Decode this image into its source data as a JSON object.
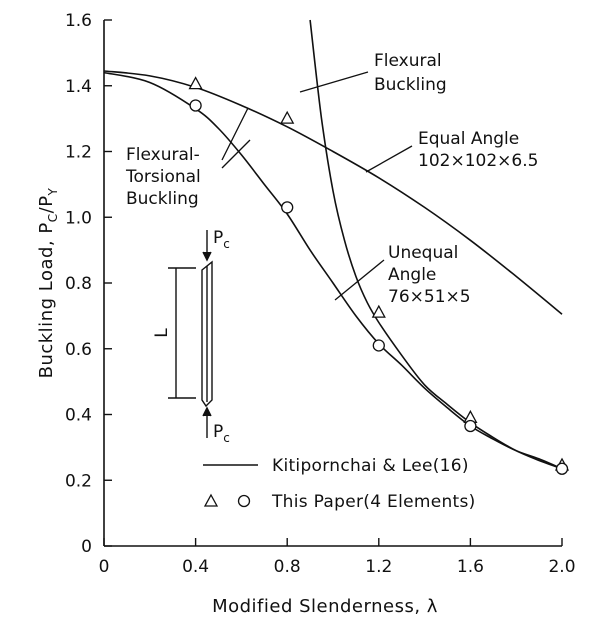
{
  "chart_data": {
    "type": "line",
    "xlabel": "Modified Slenderness, λ",
    "ylabel_parts": [
      "Buckling Load, P",
      "C",
      "/P",
      "Y"
    ],
    "xlim": [
      0,
      2.0
    ],
    "ylim": [
      0,
      1.6
    ],
    "xticks": [
      0,
      0.4,
      0.8,
      1.2,
      1.6,
      2.0
    ],
    "xtick_labels": [
      "0",
      "0.4",
      "0.8",
      "1.2",
      "1.6",
      "2.0"
    ],
    "yticks": [
      0,
      0.2,
      0.4,
      0.6,
      0.8,
      1.0,
      1.2,
      1.4,
      1.6
    ],
    "ytick_labels": [
      "0",
      "0.2",
      "0.4",
      "0.6",
      "0.8",
      "1.0",
      "1.2",
      "1.4",
      "1.6"
    ],
    "grid": false,
    "legend_position": "bottom-right",
    "series": [
      {
        "name": "Equal Angle 102×102×6.5",
        "style": "line",
        "x": [
          0,
          0.2,
          0.4,
          0.6,
          0.8,
          1.0,
          1.2,
          1.4,
          1.6,
          1.8,
          2.0
        ],
        "y": [
          1.445,
          1.43,
          1.395,
          1.34,
          1.275,
          1.2,
          1.12,
          1.03,
          0.93,
          0.82,
          0.705
        ]
      },
      {
        "name": "Unequal Angle 76×51×5",
        "style": "line",
        "x": [
          0,
          0.2,
          0.4,
          0.5,
          0.6,
          0.7,
          0.8,
          0.9,
          1.0,
          1.1,
          1.2,
          1.3,
          1.4,
          1.5,
          1.6,
          1.7,
          1.8,
          1.9,
          2.0
        ],
        "y": [
          1.44,
          1.41,
          1.33,
          1.27,
          1.19,
          1.1,
          1.01,
          0.9,
          0.8,
          0.7,
          0.615,
          0.55,
          0.48,
          0.42,
          0.365,
          0.325,
          0.29,
          0.265,
          0.235
        ]
      },
      {
        "name": "Flexural Buckling",
        "style": "line",
        "x": [
          0.9,
          0.95,
          1.0,
          1.05,
          1.1,
          1.15,
          1.2,
          1.3,
          1.4,
          1.5,
          1.6,
          1.7,
          1.8,
          1.9,
          2.0
        ],
        "y": [
          1.6,
          1.3,
          1.08,
          0.93,
          0.82,
          0.74,
          0.68,
          0.58,
          0.49,
          0.43,
          0.375,
          0.33,
          0.29,
          0.26,
          0.235
        ]
      },
      {
        "name": "This Paper (4 Elements) — triangles",
        "style": "marker-triangle",
        "x": [
          0.4,
          0.8,
          1.2,
          1.6,
          2.0
        ],
        "y": [
          1.405,
          1.3,
          0.71,
          0.39,
          0.245
        ]
      },
      {
        "name": "This Paper (4 Elements) — circles",
        "style": "marker-circle",
        "x": [
          0.4,
          0.8,
          1.2,
          1.6,
          2.0
        ],
        "y": [
          1.34,
          1.03,
          0.61,
          0.365,
          0.235
        ]
      }
    ],
    "annotations": {
      "flexural_buckling": [
        "Flexural",
        "Buckling"
      ],
      "equal_angle": [
        "Equal Angle",
        "102×102×6.5"
      ],
      "flexural_torsional": [
        "Flexural-",
        "Torsional",
        "Buckling"
      ],
      "unequal_angle": [
        "Unequal",
        "Angle",
        "76×51×5"
      ],
      "load_top": [
        "P",
        "c"
      ],
      "load_bottom": [
        "P",
        "c"
      ],
      "length_label": "L"
    },
    "legend": {
      "line_label": "Kitipornchai & Lee(16)",
      "marker_label": "This Paper(4 Elements)"
    }
  }
}
